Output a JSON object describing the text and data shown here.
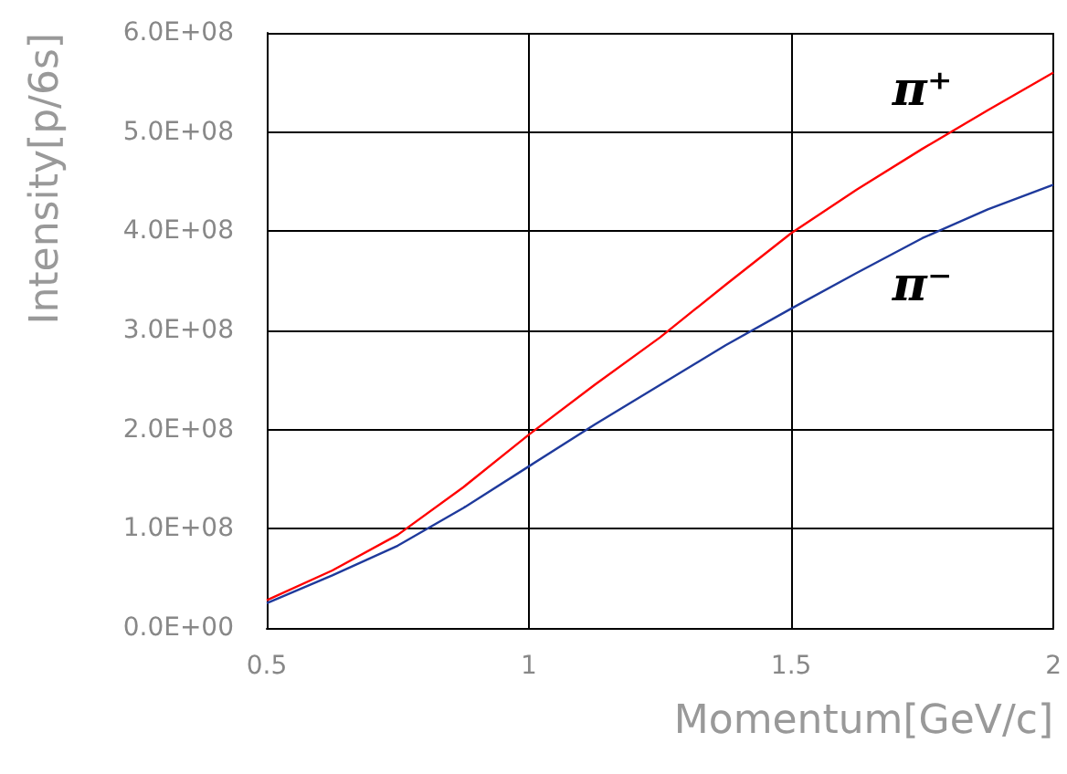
{
  "chart_data": {
    "type": "line",
    "xlabel": "Momentum[GeV/c]",
    "ylabel": "Intensity[p/6s]",
    "xlim": [
      0.5,
      2
    ],
    "xticks": [
      0.5,
      1,
      1.5,
      2
    ],
    "ylim": [
      0,
      600000000
    ],
    "yticks": [
      {
        "value": 0,
        "label": "0.0E+00"
      },
      {
        "value": 100000000,
        "label": "1.0E+08"
      },
      {
        "value": 200000000,
        "label": "2.0E+08"
      },
      {
        "value": 300000000,
        "label": "3.0E+08"
      },
      {
        "value": 400000000,
        "label": "4.0E+08"
      },
      {
        "value": 500000000,
        "label": "5.0E+08"
      },
      {
        "value": 600000000,
        "label": "6.0E+08"
      }
    ],
    "grid": true,
    "legend": false,
    "marker": "none",
    "line_style": "solid",
    "x": [
      0.5,
      0.625,
      0.75,
      0.875,
      1.0,
      1.125,
      1.25,
      1.375,
      1.5,
      1.625,
      1.75,
      1.875,
      2.0
    ],
    "series": [
      {
        "name": "π⁺",
        "color": "#ff0000",
        "values": [
          28000000,
          58000000,
          94000000,
          142000000,
          195000000,
          245000000,
          293000000,
          346000000,
          398000000,
          442000000,
          483000000,
          522000000,
          560000000
        ]
      },
      {
        "name": "π⁻",
        "color": "#1f3a9c",
        "values": [
          25000000,
          53000000,
          83000000,
          121000000,
          163000000,
          205000000,
          245000000,
          285000000,
          322000000,
          358000000,
          393000000,
          422000000,
          447000000
        ]
      }
    ]
  }
}
